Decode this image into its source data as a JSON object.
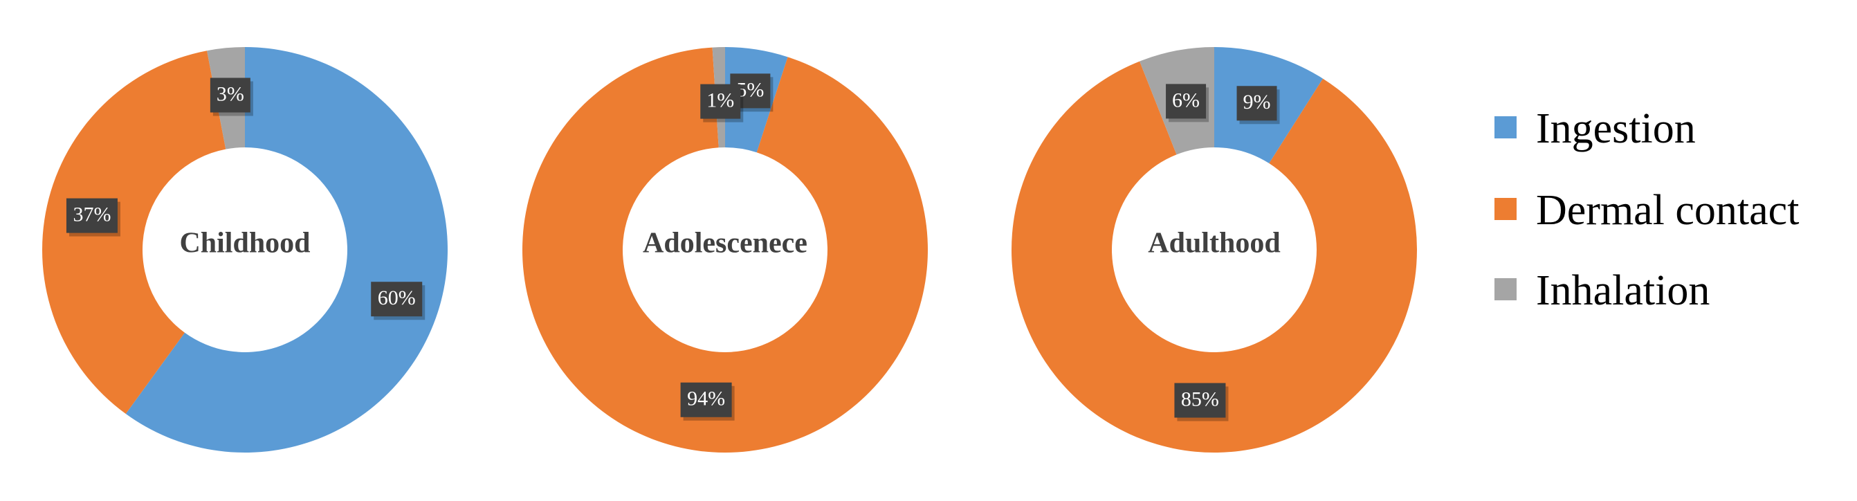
{
  "chart_data": {
    "type": "pie",
    "variant": "donut",
    "categories": [
      "Ingestion",
      "Dermal contact",
      "Inhalation"
    ],
    "colors": {
      "Ingestion": "#5b9bd5",
      "Dermal contact": "#ed7d31",
      "Inhalation": "#a5a5a5"
    },
    "legend_position": "right",
    "charts": [
      {
        "center_label": "Childhood",
        "values": {
          "Ingestion": 60,
          "Dermal contact": 37,
          "Inhalation": 3
        },
        "labels": {
          "Ingestion": "60%",
          "Dermal contact": "37%",
          "Inhalation": "3%"
        }
      },
      {
        "center_label": "Adolescenece",
        "values": {
          "Ingestion": 5,
          "Dermal contact": 94,
          "Inhalation": 1
        },
        "labels": {
          "Ingestion": "5%",
          "Dermal contact": "94%",
          "Inhalation": "1%"
        }
      },
      {
        "center_label": "Adulthood",
        "values": {
          "Ingestion": 9,
          "Dermal contact": 85,
          "Inhalation": 6
        },
        "labels": {
          "Ingestion": "9%",
          "Dermal contact": "85%",
          "Inhalation": "6%"
        }
      }
    ]
  }
}
